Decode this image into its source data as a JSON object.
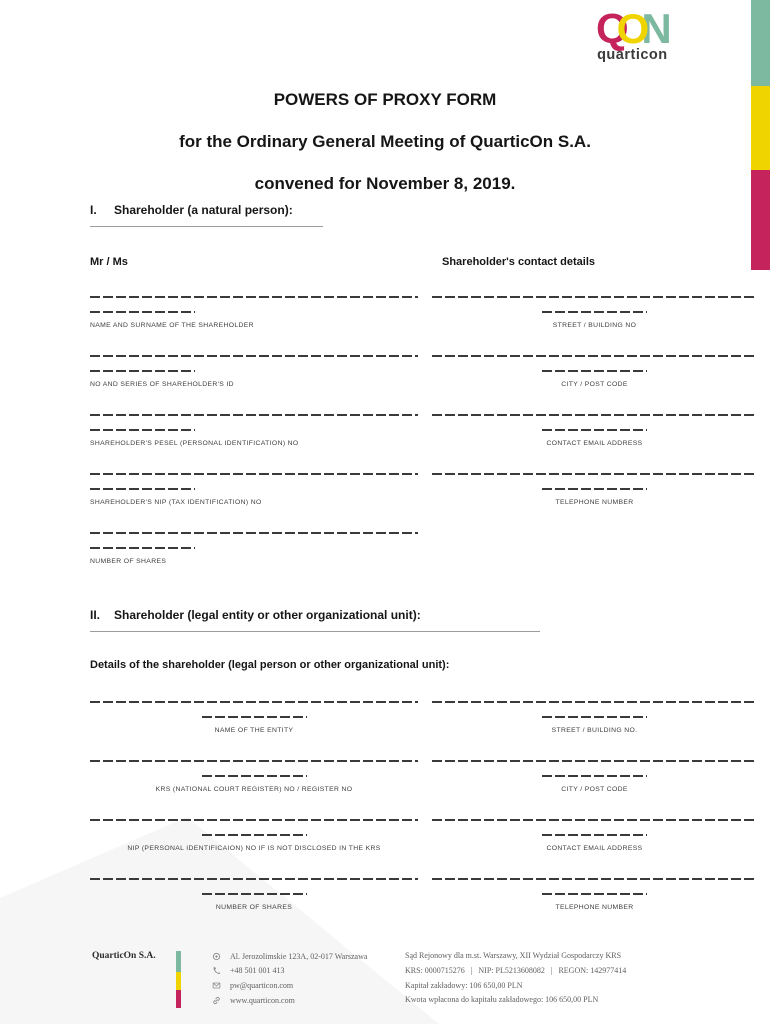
{
  "colors": {
    "crimson": "#c5235c",
    "yellow": "#f0d400",
    "green": "#7cb9a0",
    "label_gray": "#3e3e3e",
    "footer_gray": "#5f5f5f"
  },
  "logo": {
    "letters": [
      {
        "char": "Q",
        "color": "#c5235c"
      },
      {
        "char": "O",
        "color": "#f0d400"
      },
      {
        "char": "N",
        "color": "#7cb9a0"
      }
    ],
    "wordmark": "quarticon"
  },
  "title": {
    "line1": "POWERS OF PROXY FORM",
    "line2": "for the Ordinary General Meeting of QuarticOn S.A.",
    "line3": "convened for November 8, 2019."
  },
  "section1": {
    "number": "I.",
    "heading": "Shareholder (a natural person):",
    "left_header": "Mr / Ms",
    "right_header": "Shareholder's contact details",
    "left_fields": [
      "NAME AND SURNAME OF THE SHAREHOLDER",
      "NO AND SERIES OF SHAREHOLDER'S ID",
      "SHAREHOLDER'S PESEL (PERSONAL IDENTIFICATION) NO",
      "SHAREHOLDER'S NIP (TAX IDENTIFICATION) NO",
      "NUMBER OF SHARES"
    ],
    "right_fields": [
      "STREET / BUILDING NO",
      "CITY / POST CODE",
      "CONTACT EMAIL ADDRESS",
      "TELEPHONE NUMBER"
    ]
  },
  "section2": {
    "number": "II.",
    "heading": "Shareholder (legal entity or other organizational unit):",
    "subheading": "Details of the shareholder (legal person or other organizational unit):",
    "left_fields": [
      "NAME OF THE ENTITY",
      "KRS (NATIONAL COURT REGISTER) NO / REGISTER NO",
      "NIP (PERSONAL IDENTIFICAION) NO IF IS NOT DISCLOSED IN THE KRS",
      "NUMBER OF SHARES"
    ],
    "right_fields": [
      "STREET / BUILDING NO.",
      "CITY / POST CODE",
      "CONTACT EMAIL ADDRESS",
      "TELEPHONE NUMBER"
    ]
  },
  "footer": {
    "company": "QuarticOn S.A.",
    "contacts": [
      {
        "icon": "location-icon",
        "text": "Al. Jerozolimskie 123A, 02-017 Warszawa"
      },
      {
        "icon": "phone-icon",
        "text": "+48 501 001 413"
      },
      {
        "icon": "email-icon",
        "text": "pw@quarticon.com"
      },
      {
        "icon": "link-icon",
        "text": "www.quarticon.com"
      }
    ],
    "legal": [
      "Sąd Rejonowy dla m.st. Warszawy, XII Wydział Gospodarczy KRS",
      "KRS: 0000715276   |   NIP: PL5213608082   |   REGON: 142977414",
      "Kapitał zakładowy: 106 650,00 PLN",
      "Kwota wpłacona do kapitału zakładowego: 106 650,00 PLN"
    ]
  }
}
